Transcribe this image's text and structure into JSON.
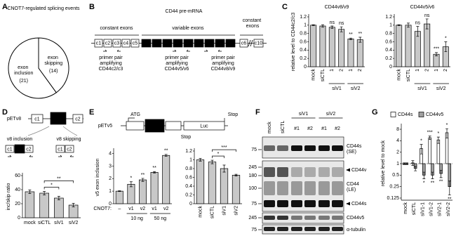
{
  "panel_labels": [
    "A",
    "B",
    "C",
    "D",
    "E",
    "F",
    "G"
  ],
  "chart_data": [
    {
      "type": "pie",
      "title": "CNOT7-regulated splicing events",
      "categories": [
        "exon inclusion",
        "exon skipping"
      ],
      "values": [
        21,
        14
      ],
      "value_labels": [
        "(21)",
        "(14)"
      ],
      "colors": [
        "#ffffff",
        "#ffffff"
      ]
    },
    {
      "type": "bar",
      "title": "CD44v8/v9",
      "y_label": "relative level to CD44c2/c3",
      "categories": [
        "mock",
        "siCTL",
        "1",
        "2",
        "1",
        "2"
      ],
      "x_groups": [
        "siV1",
        "siV2"
      ],
      "values": [
        1,
        0.98,
        0.95,
        0.9,
        0.67,
        0.65
      ],
      "errors": [
        0.01,
        0.03,
        0.03,
        0.06,
        0.02,
        0.06
      ],
      "annotations": [
        null,
        null,
        "ns",
        "ns",
        "**",
        "**"
      ],
      "ylim": [
        0,
        1.2
      ],
      "yticks": [
        0,
        0.2,
        0.4,
        0.6,
        0.8,
        1,
        1.2
      ],
      "color": "#c8c8c8"
    },
    {
      "type": "bar",
      "title": "CD44v5/v6",
      "categories": [
        "mock",
        "siCTL",
        "1",
        "2",
        "1",
        "2"
      ],
      "x_groups": [
        "siV1",
        "siV2"
      ],
      "values": [
        1,
        1,
        0.85,
        1.03,
        0.3,
        0.48
      ],
      "errors": [
        0.01,
        0.05,
        0.12,
        0.12,
        0.04,
        0.12
      ],
      "annotations": [
        null,
        null,
        "ns",
        "ns",
        "***",
        "*"
      ],
      "ylim": [
        0,
        1.2
      ],
      "yticks": [
        0,
        0.2,
        0.4,
        0.6,
        0.8,
        1,
        1.2
      ],
      "color": "#c8c8c8"
    },
    {
      "type": "bar",
      "y_label": "inc/skip ratio",
      "categories": [
        "mock",
        "siCTL",
        "siV1",
        "siV2"
      ],
      "values": [
        37,
        35,
        28,
        18
      ],
      "errors": [
        2.5,
        2.5,
        2.5,
        2.5
      ],
      "brackets": [
        {
          "label": "*",
          "from": "siCTL",
          "to": "siV1"
        },
        {
          "label": "**",
          "from": "siCTL",
          "to": "siV2"
        }
      ],
      "ylim": [
        0,
        60
      ],
      "yticks": [
        0,
        20,
        40,
        60
      ],
      "color": "#c8c8c8"
    },
    {
      "type": "bar",
      "y_label": "v5 exon inclusion",
      "categories": [
        "–",
        "v1",
        "v2",
        "v1",
        "v2"
      ],
      "x_groups": [
        "10 ng",
        "50 ng"
      ],
      "x_prefix": "CNOT7:",
      "values": [
        1,
        1.55,
        1.9,
        2.5,
        3.85
      ],
      "errors": [
        0.03,
        0.2,
        0.12,
        0.06,
        0.08
      ],
      "annotations": [
        null,
        "*",
        "**",
        "**",
        "**"
      ],
      "ylim": [
        0,
        4.2
      ],
      "yticks": [
        0,
        1,
        2,
        3,
        4
      ],
      "color": "#c8c8c8"
    },
    {
      "type": "bar",
      "categories": [
        "mock",
        "siCTL",
        "siV1",
        "siV2"
      ],
      "values": [
        1,
        0.95,
        0.8,
        0.65
      ],
      "errors": [
        0.03,
        0.04,
        0.08,
        0.02
      ],
      "brackets": [
        {
          "label": "*",
          "from": "siCTL",
          "to": "siV1"
        },
        {
          "label": "***",
          "from": "siCTL",
          "to": "siV2"
        }
      ],
      "ylim": [
        0,
        1.2
      ],
      "yticks": [
        0,
        0.2,
        0.4,
        0.6,
        0.8,
        1,
        1.2
      ],
      "color": "#c8c8c8"
    },
    {
      "type": "bar",
      "log_scale": true,
      "y_label": "relative level to mock",
      "categories": [
        "mock",
        "siCTL",
        "siV1-1",
        "siV1-2",
        "siV2-1",
        "siV2-2"
      ],
      "series": [
        {
          "name": "CD44s",
          "color": "#ffffff",
          "values": [
            1,
            1.05,
            2.5,
            4.8,
            4.2,
            6.5
          ],
          "errors": [
            0.05,
            0.15,
            0.7,
            0.5,
            0.8,
            1.8
          ],
          "annotations": [
            null,
            null,
            "*",
            "***",
            "*",
            "*"
          ]
        },
        {
          "name": "CD44v5",
          "color": "#a0a0a0",
          "values": [
            1,
            0.75,
            0.5,
            0.5,
            0.55,
            0.25
          ],
          "errors": [
            0.05,
            0.1,
            0.1,
            0.1,
            0.12,
            0.1
          ],
          "annotations": [
            null,
            null,
            "*",
            "**",
            "**",
            "**"
          ]
        }
      ],
      "ylim": [
        0.11,
        9.5
      ],
      "yticks": [
        0.125,
        0.25,
        0.5,
        1,
        2,
        4,
        8
      ],
      "legend": "top"
    }
  ],
  "B": {
    "title": "CD44 pre-mRNA",
    "regions": [
      "constant exons",
      "variable exons",
      "constant exons"
    ],
    "exons": [
      "c1",
      "c2",
      "c3",
      "c4",
      "c5",
      "v2",
      "v3",
      "v4",
      "v5",
      "v6",
      "v7",
      "v8",
      "v9",
      "v10",
      "c6",
      "c10"
    ],
    "primers": [
      [
        "primer pair",
        "amplifying",
        "CD44c2/c3"
      ],
      [
        "primer pair",
        "amplifying",
        "CD44v5/v6"
      ],
      [
        "primer pair",
        "amplifying",
        "CD44v8/v9"
      ]
    ]
  },
  "D": {
    "construct": "pETv8",
    "exons": [
      "c1",
      "v8",
      "c2"
    ],
    "outcomes": [
      "v8 inclusion",
      "v8 skipping"
    ]
  },
  "E": {
    "construct": "pETv5",
    "start": "ATG",
    "stop": "Stop",
    "exon": "v5",
    "reporter": "Luc",
    "lower_stop": "Stop"
  },
  "F": {
    "lanes": [
      "mock",
      "siCTL"
    ],
    "groups": [
      "siV1",
      "siV2"
    ],
    "replicates": [
      "#1",
      "#2",
      "#1",
      "#2"
    ],
    "markers": [
      75,
      245,
      180,
      100,
      75,
      245,
      75
    ],
    "bands": [
      "CD44s (SE)",
      "CD44v",
      "CD44 (LE)",
      "CD44s",
      "CD44v5",
      "α-tubulin"
    ]
  }
}
